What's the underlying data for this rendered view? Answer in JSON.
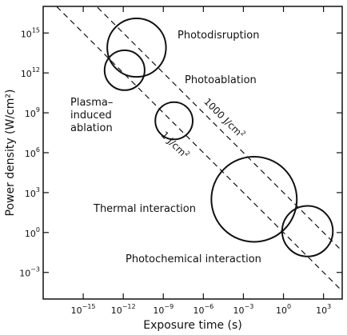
{
  "chart_data": {
    "type": "scatter",
    "xlabel": "Exposure time (s)",
    "ylabel": "Power density (W/cm²)",
    "x_scale": "log",
    "y_scale": "log",
    "xlim_log10": [
      -18,
      4.4
    ],
    "ylim_log10": [
      -5,
      17
    ],
    "x_ticks": [
      {
        "base": "10",
        "exp": "−15",
        "log10": -15
      },
      {
        "base": "10",
        "exp": "−12",
        "log10": -12
      },
      {
        "base": "10",
        "exp": "−9",
        "log10": -9
      },
      {
        "base": "10",
        "exp": "−6",
        "log10": -6
      },
      {
        "base": "10",
        "exp": "−3",
        "log10": -3
      },
      {
        "base": "10",
        "exp": "0",
        "log10": 0
      },
      {
        "base": "10",
        "exp": "3",
        "log10": 3
      }
    ],
    "y_ticks": [
      {
        "base": "10",
        "exp": "15",
        "log10": 15
      },
      {
        "base": "10",
        "exp": "12",
        "log10": 12
      },
      {
        "base": "10",
        "exp": "9",
        "log10": 9
      },
      {
        "base": "10",
        "exp": "6",
        "log10": 6
      },
      {
        "base": "10",
        "exp": "3",
        "log10": 3
      },
      {
        "base": "10",
        "exp": "0",
        "log10": 0
      },
      {
        "base": "10",
        "exp": "−3",
        "log10": -3
      }
    ],
    "regions": [
      {
        "key": "photodisruption",
        "lines": [
          "Photodisruption"
        ],
        "center_log10": [
          -11,
          13.9
        ],
        "r_log10": 2.2
      },
      {
        "key": "photoablation",
        "lines": [
          "Photoablation"
        ],
        "center_log10": [
          -11.9,
          12.2
        ],
        "r_log10": 1.5
      },
      {
        "key": "plasma-induced-ablation",
        "lines": [
          "Plasma–",
          "induced",
          "ablation"
        ],
        "center_log10": [
          -8.2,
          8.4
        ],
        "r_log10": 1.4
      },
      {
        "key": "thermal-interaction",
        "lines": [
          "Thermal interaction"
        ],
        "center_log10": [
          -2.2,
          2.5
        ],
        "r_log10": 3.2
      },
      {
        "key": "photochemical-interaction",
        "lines": [
          "Photochemical interaction"
        ],
        "center_log10": [
          1.8,
          0.1
        ],
        "r_log10": 1.9
      }
    ],
    "fluence_lines": [
      {
        "key": "1000",
        "text": "1000 J/cm",
        "sup": "2",
        "log10_fluence": 3
      },
      {
        "key": "1",
        "text": "1 J/cm",
        "sup": "2",
        "log10_fluence": 0
      }
    ]
  }
}
